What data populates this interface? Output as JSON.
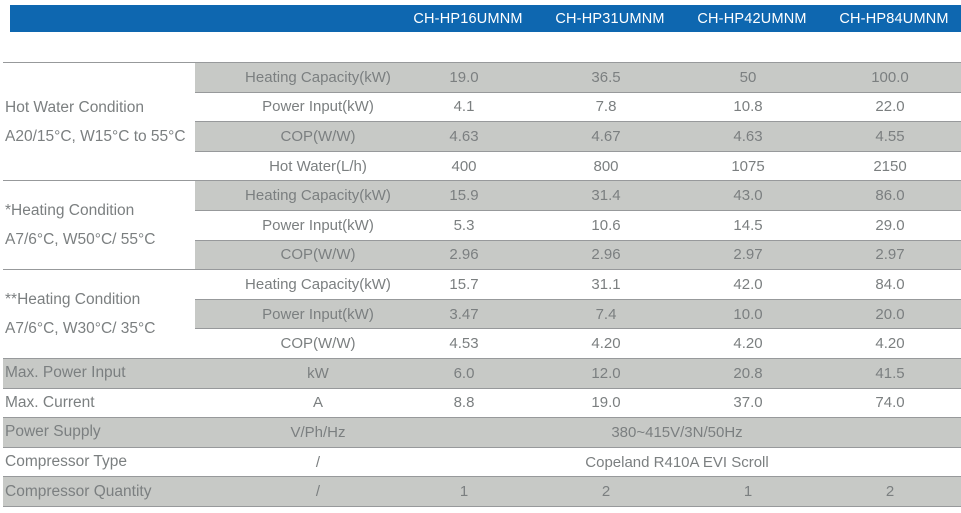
{
  "models": [
    "CH-HP16UMNM",
    "CH-HP31UMNM",
    "CH-HP42UMNM",
    "CH-HP84UMNM"
  ],
  "groups": [
    {
      "label_line1": "Hot Water Condition",
      "label_line2": "A20/15°C, W15°C to 55°C",
      "rows": [
        {
          "param": "Heating Capacity(kW)",
          "values": [
            "19.0",
            "36.5",
            "50",
            "100.0"
          ],
          "shaded": true
        },
        {
          "param": "Power Input(kW)",
          "values": [
            "4.1",
            "7.8",
            "10.8",
            "22.0"
          ],
          "shaded": false
        },
        {
          "param": "COP(W/W)",
          "values": [
            "4.63",
            "4.67",
            "4.63",
            "4.55"
          ],
          "shaded": true
        },
        {
          "param": "Hot Water(L/h)",
          "values": [
            "400",
            "800",
            "1075",
            "2150"
          ],
          "shaded": false
        }
      ]
    },
    {
      "label_line1": "*Heating Condition",
      "label_line2": "A7/6°C, W50°C/ 55°C",
      "rows": [
        {
          "param": "Heating Capacity(kW)",
          "values": [
            "15.9",
            "31.4",
            "43.0",
            "86.0"
          ],
          "shaded": true
        },
        {
          "param": "Power Input(kW)",
          "values": [
            "5.3",
            "10.6",
            "14.5",
            "29.0"
          ],
          "shaded": false
        },
        {
          "param": "COP(W/W)",
          "values": [
            "2.96",
            "2.96",
            "2.97",
            "2.97"
          ],
          "shaded": true
        }
      ]
    },
    {
      "label_line1": "**Heating Condition",
      "label_line2": "A7/6°C, W30°C/ 35°C",
      "rows": [
        {
          "param": "Heating Capacity(kW)",
          "values": [
            "15.7",
            "31.1",
            "42.0",
            "84.0"
          ],
          "shaded": false
        },
        {
          "param": "Power Input(kW)",
          "values": [
            "3.47",
            "7.4",
            "10.0",
            "20.0"
          ],
          "shaded": true
        },
        {
          "param": "COP(W/W)",
          "values": [
            "4.53",
            "4.20",
            "4.20",
            "4.20"
          ],
          "shaded": false
        }
      ]
    }
  ],
  "bottom_rows": [
    {
      "label": "Max. Power Input",
      "unit": "kW",
      "values": [
        "6.0",
        "12.0",
        "20.8",
        "41.5"
      ],
      "shaded": true
    },
    {
      "label": "Max. Current",
      "unit": "A",
      "values": [
        "8.8",
        "19.0",
        "37.0",
        "74.0"
      ],
      "shaded": false
    },
    {
      "label": "Power Supply",
      "unit": "V/Ph/Hz",
      "span_value": "380~415V/3N/50Hz",
      "shaded": true
    },
    {
      "label": "Compressor Type",
      "unit": "/",
      "span_value": "Copeland R410A EVI Scroll",
      "shaded": false
    },
    {
      "label": "Compressor Quantity",
      "unit": "/",
      "values": [
        "1",
        "2",
        "1",
        "2"
      ],
      "shaded": true
    }
  ],
  "colors": {
    "header_bg": "#0E67B0",
    "header_text": "#FFFFFF",
    "shaded_bg": "#C7C9C6",
    "text": "#7B7F80",
    "border": "#97999B"
  }
}
